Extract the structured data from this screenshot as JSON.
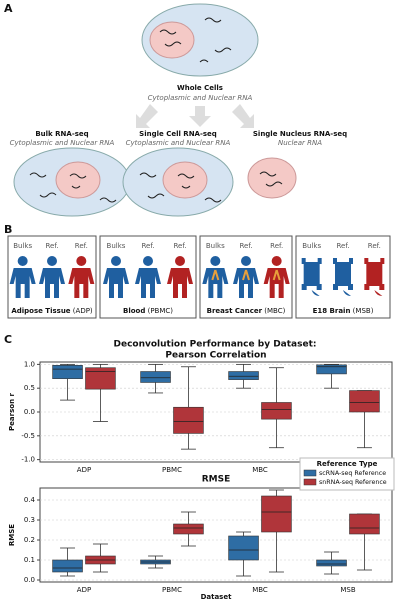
{
  "panel_a": {
    "label": "A",
    "top": {
      "title": "Whole Cells",
      "subtitle": "Cytoplasmic and Nuclear RNA"
    },
    "branches": [
      {
        "title": "Bulk RNA-seq",
        "subtitle": "Cytoplasmic and Nuclear RNA"
      },
      {
        "title": "Single Cell RNA-seq",
        "subtitle": "Cytoplasmic and Nuclear RNA"
      },
      {
        "title": "Single Nucleus RNA-seq",
        "subtitle": "Nuclear RNA"
      }
    ]
  },
  "panel_b": {
    "label": "B",
    "groups": [
      {
        "name": "Adipose Tissue",
        "abbr": "(ADP)",
        "icons": [
          "Bulks",
          "Ref.",
          "Ref."
        ]
      },
      {
        "name": "Blood",
        "abbr": "(PBMC)",
        "icons": [
          "Bulks",
          "Ref.",
          "Ref."
        ]
      },
      {
        "name": "Breast Cancer",
        "abbr": "(MBC)",
        "icons": [
          "Bulks",
          "Ref.",
          "Ref."
        ]
      },
      {
        "name": "E18 Brain",
        "abbr": "(MSB)",
        "icons": [
          "Bulks",
          "Ref.",
          "Ref."
        ]
      }
    ]
  },
  "panel_c": {
    "label": "C",
    "title": "Deconvolution Performance by Dataset:"
  },
  "chart_data": [
    {
      "type": "box",
      "title": "Pearson Correlation",
      "ylabel": "Pearson r",
      "categories": [
        "ADP",
        "PBMC",
        "MBC",
        "MSB"
      ],
      "ylim": [
        -1.05,
        1.05
      ],
      "yticks": [
        {
          "value": -1,
          "label": "-1.0"
        },
        {
          "value": -0.5,
          "label": "-0.5"
        },
        {
          "value": 0,
          "label": "0.0"
        },
        {
          "value": 0.5,
          "label": "0.5"
        },
        {
          "value": 1,
          "label": "1.0"
        }
      ],
      "grid": true,
      "series": [
        {
          "color": "#2e6da4",
          "boxes": [
            {
              "min": 0.25,
              "q1": 0.7,
              "median": 0.9,
              "q3": 0.98,
              "max": 1.0
            },
            {
              "min": 0.4,
              "q1": 0.62,
              "median": 0.72,
              "q3": 0.85,
              "max": 1.0
            },
            {
              "min": 0.5,
              "q1": 0.68,
              "median": 0.75,
              "q3": 0.85,
              "max": 1.0
            },
            {
              "min": 0.5,
              "q1": 0.8,
              "median": 0.95,
              "q3": 0.99,
              "max": 1.0
            }
          ]
        },
        {
          "color": "#b0353a",
          "boxes": [
            {
              "min": -0.2,
              "q1": 0.48,
              "median": 0.85,
              "q3": 0.93,
              "max": 1.0
            },
            {
              "min": -0.78,
              "q1": -0.45,
              "median": -0.2,
              "q3": 0.1,
              "max": 0.95
            },
            {
              "min": -0.75,
              "q1": -0.15,
              "median": 0.05,
              "q3": 0.2,
              "max": 0.93
            },
            {
              "min": -0.75,
              "q1": 0.0,
              "median": 0.2,
              "q3": 0.45,
              "max": 0.45
            }
          ]
        }
      ]
    },
    {
      "type": "box",
      "title": "RMSE",
      "ylabel": "RMSE",
      "xlabel": "Dataset",
      "categories": [
        "ADP",
        "PBMC",
        "MBC",
        "MSB"
      ],
      "ylim": [
        -0.01,
        0.46
      ],
      "yticks": [
        {
          "value": 0,
          "label": "0.0"
        },
        {
          "value": 0.1,
          "label": "0.1"
        },
        {
          "value": 0.2,
          "label": "0.2"
        },
        {
          "value": 0.3,
          "label": "0.3"
        },
        {
          "value": 0.4,
          "label": "0.4"
        }
      ],
      "grid": true,
      "legend": "upper right",
      "legend_title": "Reference Type",
      "series": [
        {
          "name": "scRNA-seq Reference",
          "color": "#2e6da4",
          "boxes": [
            {
              "min": 0.02,
              "q1": 0.04,
              "median": 0.06,
              "q3": 0.1,
              "max": 0.16
            },
            {
              "min": 0.06,
              "q1": 0.08,
              "median": 0.09,
              "q3": 0.1,
              "max": 0.12
            },
            {
              "min": 0.02,
              "q1": 0.1,
              "median": 0.15,
              "q3": 0.22,
              "max": 0.24
            },
            {
              "min": 0.03,
              "q1": 0.07,
              "median": 0.08,
              "q3": 0.1,
              "max": 0.14
            }
          ]
        },
        {
          "name": "snRNA-seq Reference",
          "color": "#b0353a",
          "boxes": [
            {
              "min": 0.04,
              "q1": 0.08,
              "median": 0.1,
              "q3": 0.12,
              "max": 0.18
            },
            {
              "min": 0.17,
              "q1": 0.23,
              "median": 0.26,
              "q3": 0.28,
              "max": 0.34
            },
            {
              "min": 0.04,
              "q1": 0.24,
              "median": 0.34,
              "q3": 0.42,
              "max": 0.45
            },
            {
              "min": 0.05,
              "q1": 0.23,
              "median": 0.26,
              "q3": 0.33,
              "max": 0.33
            }
          ]
        }
      ]
    }
  ]
}
